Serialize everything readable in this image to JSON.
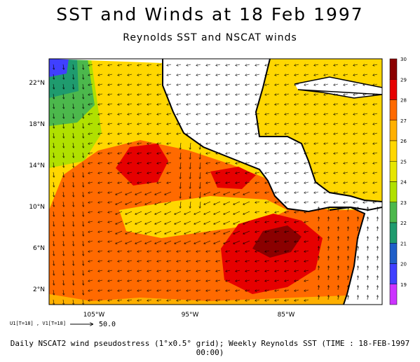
{
  "title": "SST and Winds at 18 Feb 1997",
  "subtitle": "Reynolds SST and NSCAT winds",
  "footer": "Daily NSCAT2 wind pseudostress (1°x0.5° grid); Weekly Reynolds SST (TIME : 18-FEB-1997 00:00)",
  "ref_vector": {
    "key": "U1[T=18] , V1[T=18]",
    "value": "50.0"
  },
  "axes": {
    "lon_labels": [
      "105°W",
      "95°W",
      "85°W"
    ],
    "lat_labels": [
      "22°N",
      "18°N",
      "14°N",
      "10°N",
      "6°N",
      "2°N"
    ]
  },
  "colorbar": {
    "levels": [
      "30",
      "29",
      "28",
      "27",
      "26",
      "25",
      "24",
      "23",
      "22",
      "21",
      "20",
      "19"
    ],
    "colors": [
      "#8b0000",
      "#e60000",
      "#ff6a00",
      "#ffb000",
      "#ffd700",
      "#e6e600",
      "#b0e000",
      "#4cb84c",
      "#1f9b6e",
      "#1f5fc8",
      "#4040ff",
      "#cc33ff"
    ]
  },
  "colors": {
    "land": "#ffffff",
    "coast": "#000000",
    "sst_26": "#ffd700",
    "sst_27": "#ffb000",
    "sst_28": "#ff6a00",
    "sst_29": "#e60000",
    "sst_30": "#8b0000"
  }
}
